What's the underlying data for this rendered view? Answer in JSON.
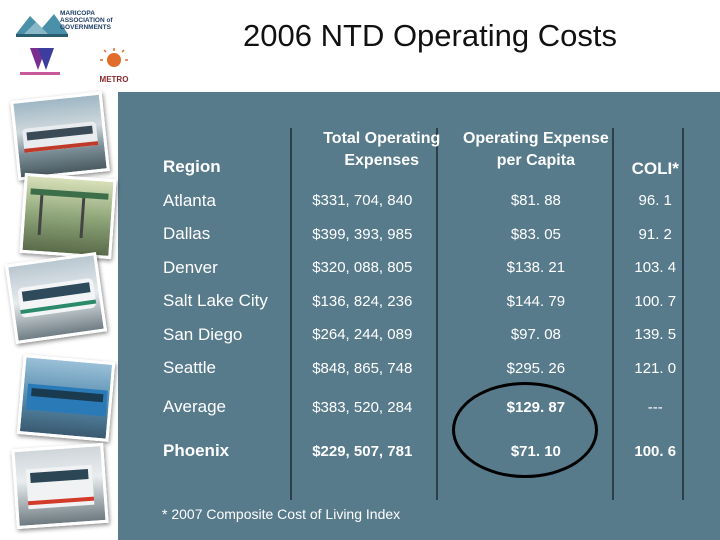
{
  "slide": {
    "title": "2006 NTD Operating Costs",
    "footnote": "* 2007 Composite Cost of Living Index"
  },
  "logos": {
    "mag_line1": "MARICOPA",
    "mag_line2": "ASSOCIATION of",
    "mag_line3": "GOVERNMENTS",
    "metro": "METRO"
  },
  "table": {
    "headers": {
      "region": "Region",
      "total": "Total Operating Expenses",
      "per_capita": "Operating Expense per Capita",
      "coli": "COLI*"
    },
    "rows": [
      {
        "region": "Atlanta",
        "total": "$331, 704, 840",
        "per_capita": "$81. 88",
        "coli": "96. 1"
      },
      {
        "region": "Dallas",
        "total": "$399, 393, 985",
        "per_capita": "$83. 05",
        "coli": "91. 2"
      },
      {
        "region": "Denver",
        "total": "$320, 088, 805",
        "per_capita": "$138. 21",
        "coli": "103. 4"
      },
      {
        "region": "Salt Lake City",
        "total": "$136, 824, 236",
        "per_capita": "$144. 79",
        "coli": "100. 7"
      },
      {
        "region": "San Diego",
        "total": "$264, 244, 089",
        "per_capita": "$97. 08",
        "coli": "139. 5"
      },
      {
        "region": "Seattle",
        "total": "$848, 865, 748",
        "per_capita": "$295. 26",
        "coli": "121. 0"
      }
    ],
    "average": {
      "region": "Average",
      "total": "$383, 520, 284",
      "per_capita": "$129. 87",
      "coli": "---"
    },
    "phoenix": {
      "region": "Phoenix",
      "total": "$229, 507, 781",
      "per_capita": "$71. 10",
      "coli": "100. 6"
    }
  },
  "colors": {
    "panel": "#587b8c",
    "text": "#ffffff",
    "highlight_circle": "#000000"
  }
}
